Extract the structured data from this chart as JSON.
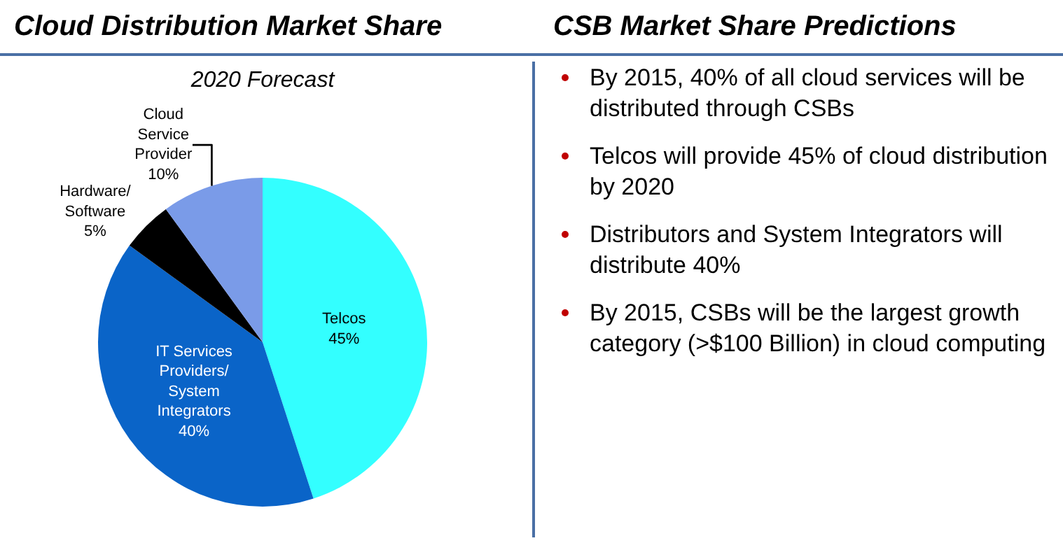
{
  "chart_data": [
    {
      "type": "pie",
      "title": "Cloud Distribution Market Share",
      "subtitle": "2020 Forecast",
      "categories": [
        "Telcos",
        "IT Services Providers/ System Integrators",
        "Hardware/ Software",
        "Cloud Service Provider"
      ],
      "values": [
        45,
        40,
        5,
        10
      ],
      "value_labels": [
        "45%",
        "40%",
        "5%",
        "10%"
      ],
      "colors": [
        "#33ffff",
        "#0a64c8",
        "#000000",
        "#7a9be8"
      ],
      "legend": false
    },
    {
      "type": "other",
      "title": "CSB Market Share Predictions",
      "annotations": [
        "By 2015, 40% of all cloud services will be distributed through CSBs",
        "Telcos will provide 45% of cloud distribution by 2020",
        "Distributors and System Integrators will distribute 40%",
        "By 2015, CSBs will be the largest growth category (>$100 Billion) in cloud computing"
      ]
    }
  ]
}
